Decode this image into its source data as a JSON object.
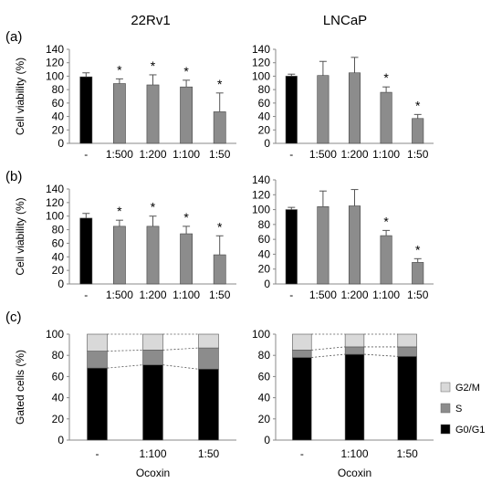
{
  "columns": [
    "22Rv1",
    "LNCaP"
  ],
  "row_labels": [
    "(a)",
    "(b)",
    "(c)"
  ],
  "xlabel_bottom": "Ocoxin",
  "colors": {
    "control": "#000000",
    "treated": "#8c8c8c",
    "g0g1": "#000000",
    "s": "#8c8c8c",
    "g2m": "#d9d9d9"
  },
  "chart_data": [
    {
      "id": "a-22rv1",
      "type": "bar",
      "ylabel": "Cell viability (%)",
      "ylim": [
        0,
        140
      ],
      "yticks": [
        0,
        20,
        40,
        60,
        80,
        100,
        120,
        140
      ],
      "categories": [
        "-",
        "1:500",
        "1:200",
        "1:100",
        "1:50"
      ],
      "values": [
        99,
        89,
        87,
        84,
        47
      ],
      "errors": [
        6,
        7,
        15,
        10,
        28
      ],
      "significant": [
        false,
        true,
        true,
        true,
        true
      ],
      "marker": "*"
    },
    {
      "id": "a-lncap",
      "type": "bar",
      "ylabel": "",
      "ylim": [
        0,
        140
      ],
      "yticks": [
        0,
        20,
        40,
        60,
        80,
        100,
        120,
        140
      ],
      "categories": [
        "-",
        "1:500",
        "1:200",
        "1:100",
        "1:50"
      ],
      "values": [
        100,
        101,
        105,
        76,
        37
      ],
      "errors": [
        3,
        21,
        23,
        8,
        6
      ],
      "significant": [
        false,
        false,
        false,
        true,
        true
      ],
      "marker": "*"
    },
    {
      "id": "b-22rv1",
      "type": "bar",
      "ylabel": "Cell viability (%)",
      "ylim": [
        0,
        140
      ],
      "yticks": [
        0,
        20,
        40,
        60,
        80,
        100,
        120,
        140
      ],
      "categories": [
        "-",
        "1:500",
        "1:200",
        "1:100",
        "1:50"
      ],
      "values": [
        97,
        85,
        85,
        74,
        43
      ],
      "errors": [
        7,
        9,
        15,
        11,
        28
      ],
      "significant": [
        false,
        true,
        true,
        true,
        true
      ],
      "marker": "*"
    },
    {
      "id": "b-lncap",
      "type": "bar",
      "ylabel": "",
      "ylim": [
        0,
        140
      ],
      "yticks": [
        0,
        20,
        40,
        60,
        80,
        100,
        120,
        140
      ],
      "categories": [
        "-",
        "1:500",
        "1:200",
        "1:100",
        "1:50"
      ],
      "values": [
        100,
        104,
        105,
        65,
        29
      ],
      "errors": [
        3,
        21,
        22,
        7,
        5
      ],
      "significant": [
        false,
        false,
        false,
        true,
        true
      ],
      "marker": "*"
    },
    {
      "id": "c-22rv1",
      "type": "bar",
      "stacked": true,
      "ylabel": "Gated cells (%)",
      "xlabel": "Ocoxin",
      "ylim": [
        0,
        100
      ],
      "yticks": [
        0,
        20,
        40,
        60,
        80,
        100
      ],
      "categories": [
        "-",
        "1:100",
        "1:50"
      ],
      "series": [
        {
          "name": "G0/G1",
          "values": [
            68,
            71,
            67
          ]
        },
        {
          "name": "S",
          "values": [
            16,
            14,
            20
          ]
        },
        {
          "name": "G2/M",
          "values": [
            16,
            15,
            13
          ]
        }
      ]
    },
    {
      "id": "c-lncap",
      "type": "bar",
      "stacked": true,
      "ylabel": "",
      "xlabel": "Ocoxin",
      "ylim": [
        0,
        100
      ],
      "yticks": [
        0,
        20,
        40,
        60,
        80,
        100
      ],
      "categories": [
        "-",
        "1:100",
        "1:50"
      ],
      "series": [
        {
          "name": "G0/G1",
          "values": [
            78,
            81,
            79
          ]
        },
        {
          "name": "S",
          "values": [
            7,
            7,
            9
          ]
        },
        {
          "name": "G2/M",
          "values": [
            15,
            12,
            12
          ]
        }
      ]
    }
  ],
  "legend": {
    "placement": "right",
    "entries": [
      "G2/M",
      "S",
      "G0/G1"
    ]
  }
}
